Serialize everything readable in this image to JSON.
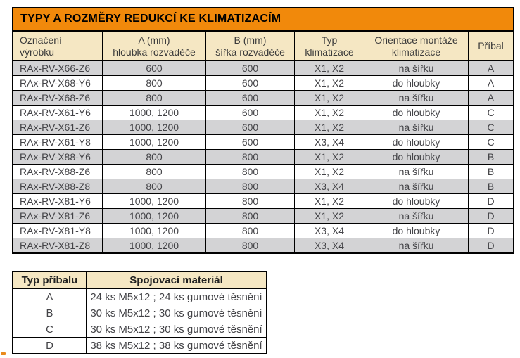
{
  "title_bar": {
    "text": "TYPY A ROZMĚRY REDUKCÍ KE KLIMATIZACÍM"
  },
  "colors": {
    "title_bg": "#F1890B",
    "header_bg": "#F5E7C3",
    "row_alt_bg": "#D3D3D5",
    "row_bg": "#FFFFFF",
    "border": "#000000",
    "text": "#434347"
  },
  "main_table": {
    "headers": [
      {
        "lines": [
          "Označení",
          "výrobku"
        ]
      },
      {
        "lines": [
          "A (mm)",
          "hloubka rozvaděče"
        ]
      },
      {
        "lines": [
          "B (mm)",
          "šířka rozvaděče"
        ]
      },
      {
        "lines": [
          "Typ",
          "klimatizace"
        ]
      },
      {
        "lines": [
          "Orientace montáže",
          "klimatizace"
        ]
      },
      {
        "lines": [
          "Příbal"
        ]
      }
    ],
    "rows": [
      [
        "RAx-RV-X66-Z6",
        "600",
        "600",
        "X1, X2",
        "na šířku",
        "A"
      ],
      [
        "RAx-RV-X68-Y6",
        "800",
        "600",
        "X1, X2",
        "do hloubky",
        "A"
      ],
      [
        "RAx-RV-X68-Z6",
        "800",
        "600",
        "X1, X2",
        "na šířku",
        "A"
      ],
      [
        "RAx-RV-X61-Y6",
        "1000, 1200",
        "600",
        "X1, X2",
        "do hloubky",
        "C"
      ],
      [
        "RAx-RV-X61-Z6",
        "1000, 1200",
        "600",
        "X1, X2",
        "na šířku",
        "C"
      ],
      [
        "RAx-RV-X61-Y8",
        "1000, 1200",
        "600",
        "X3, X4",
        "do hloubky",
        "C"
      ],
      [
        "RAx-RV-X88-Y6",
        "800",
        "800",
        "X1, X2",
        "do hloubky",
        "B"
      ],
      [
        "RAx-RV-X88-Z6",
        "800",
        "800",
        "X1, X2",
        "na šířku",
        "B"
      ],
      [
        "RAx-RV-X88-Z8",
        "800",
        "800",
        "X3, X4",
        "na šířku",
        "B"
      ],
      [
        "RAx-RV-X81-Y6",
        "1000, 1200",
        "800",
        "X1, X2",
        "do hloubky",
        "D"
      ],
      [
        "RAx-RV-X81-Z6",
        "1000, 1200",
        "800",
        "X1, X2",
        "na šířku",
        "D"
      ],
      [
        "RAx-RV-X81-Y8",
        "1000, 1200",
        "800",
        "X3, X4",
        "do hloubky",
        "D"
      ],
      [
        "RAx-RV-X81-Z8",
        "1000, 1200",
        "800",
        "X3, X4",
        "na šířku",
        "D"
      ]
    ]
  },
  "accessory_table": {
    "headers": [
      {
        "lines": [
          "Typ příbalu"
        ]
      },
      {
        "lines": [
          "Spojovací materiál"
        ]
      }
    ],
    "rows": [
      [
        "A",
        "24 ks M5x12 ; 24 ks gumové těsnění"
      ],
      [
        "B",
        "30 ks M5x12 ; 30 ks gumové těsnění"
      ],
      [
        "C",
        "30 ks M5x12 ; 30 ks gumové těsnění"
      ],
      [
        "D",
        "38 ks M5x12 ; 38 ks gumové těsnění"
      ]
    ]
  }
}
